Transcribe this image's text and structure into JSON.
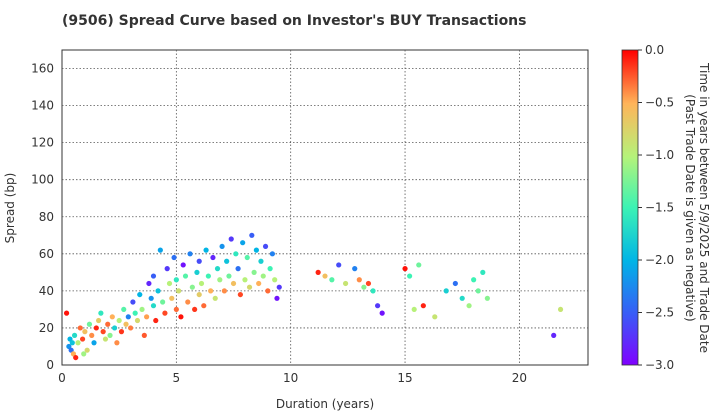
{
  "chart_data": {
    "type": "scatter",
    "title": "(9506)   Spread Curve based on Investor's BUY Transactions",
    "xlabel": "Duration (years)",
    "ylabel": "Spread (bp)",
    "xlim": [
      0,
      23
    ],
    "ylim": [
      0,
      170
    ],
    "xticks": [
      0,
      5,
      10,
      15,
      20
    ],
    "yticks": [
      0,
      20,
      40,
      60,
      80,
      100,
      120,
      140,
      160
    ],
    "grid": true,
    "colorbar": {
      "label_line1": "Time in years between 5/9/2025 and Trade Date",
      "label_line2": "(Past Trade Date is given as negative)",
      "range": [
        -3.0,
        0.0
      ],
      "ticks": [
        "0.0",
        "−0.5",
        "−1.0",
        "−1.5",
        "−2.0",
        "−2.5",
        "−3.0"
      ],
      "colormap": "rainbow"
    },
    "points": [
      [
        0.2,
        28,
        -0.05
      ],
      [
        0.3,
        10,
        -2.2
      ],
      [
        0.35,
        14,
        -2.0
      ],
      [
        0.4,
        8,
        -2.4
      ],
      [
        0.45,
        12,
        -1.9
      ],
      [
        0.5,
        6,
        -0.5
      ],
      [
        0.55,
        16,
        -1.7
      ],
      [
        0.6,
        4,
        -0.1
      ],
      [
        0.7,
        12,
        -1.0
      ],
      [
        0.8,
        20,
        -0.3
      ],
      [
        0.9,
        14,
        -0.2
      ],
      [
        0.95,
        6,
        -1.1
      ],
      [
        1.0,
        18,
        -0.6
      ],
      [
        1.1,
        8,
        -0.8
      ],
      [
        1.2,
        22,
        -1.3
      ],
      [
        1.3,
        16,
        -0.4
      ],
      [
        1.4,
        12,
        -2.1
      ],
      [
        1.5,
        20,
        -0.1
      ],
      [
        1.6,
        24,
        -0.7
      ],
      [
        1.7,
        28,
        -1.6
      ],
      [
        1.8,
        18,
        -0.2
      ],
      [
        1.9,
        14,
        -0.9
      ],
      [
        2.0,
        22,
        -0.3
      ],
      [
        2.1,
        16,
        -1.2
      ],
      [
        2.2,
        26,
        -0.5
      ],
      [
        2.3,
        20,
        -1.8
      ],
      [
        2.4,
        12,
        -0.4
      ],
      [
        2.5,
        24,
        -1.0
      ],
      [
        2.6,
        18,
        -0.15
      ],
      [
        2.7,
        30,
        -1.4
      ],
      [
        2.8,
        22,
        -0.6
      ],
      [
        2.9,
        26,
        -2.3
      ],
      [
        3.0,
        20,
        -0.35
      ],
      [
        3.1,
        34,
        -2.6
      ],
      [
        3.2,
        28,
        -1.5
      ],
      [
        3.3,
        24,
        -0.8
      ],
      [
        3.4,
        38,
        -2.0
      ],
      [
        3.5,
        30,
        -1.1
      ],
      [
        3.6,
        16,
        -0.25
      ],
      [
        3.7,
        26,
        -0.45
      ],
      [
        3.8,
        44,
        -2.8
      ],
      [
        3.9,
        36,
        -2.2
      ],
      [
        4.0,
        32,
        -1.7
      ],
      [
        4.0,
        48,
        -2.5
      ],
      [
        4.1,
        24,
        -0.1
      ],
      [
        4.2,
        40,
        -1.9
      ],
      [
        4.3,
        62,
        -2.1
      ],
      [
        4.4,
        34,
        -1.3
      ],
      [
        4.5,
        28,
        -0.2
      ],
      [
        4.6,
        52,
        -2.7
      ],
      [
        4.7,
        44,
        -1.0
      ],
      [
        4.8,
        36,
        -0.6
      ],
      [
        4.9,
        58,
        -2.4
      ],
      [
        5.0,
        30,
        -0.3
      ],
      [
        5.0,
        46,
        -1.6
      ],
      [
        5.1,
        40,
        -0.85
      ],
      [
        5.2,
        26,
        -0.05
      ],
      [
        5.3,
        54,
        -2.9
      ],
      [
        5.4,
        48,
        -1.4
      ],
      [
        5.5,
        34,
        -0.4
      ],
      [
        5.6,
        60,
        -2.3
      ],
      [
        5.7,
        42,
        -1.2
      ],
      [
        5.8,
        30,
        -0.15
      ],
      [
        5.9,
        50,
        -1.8
      ],
      [
        6.0,
        38,
        -0.7
      ],
      [
        6.0,
        56,
        -2.6
      ],
      [
        6.1,
        44,
        -1.0
      ],
      [
        6.2,
        32,
        -0.3
      ],
      [
        6.3,
        62,
        -2.0
      ],
      [
        6.4,
        48,
        -1.5
      ],
      [
        6.5,
        40,
        -0.5
      ],
      [
        6.6,
        58,
        -2.8
      ],
      [
        6.7,
        36,
        -0.9
      ],
      [
        6.8,
        52,
        -1.7
      ],
      [
        6.9,
        46,
        -1.1
      ],
      [
        7.0,
        64,
        -2.2
      ],
      [
        7.1,
        40,
        -0.4
      ],
      [
        7.2,
        56,
        -1.9
      ],
      [
        7.3,
        48,
        -1.3
      ],
      [
        7.4,
        68,
        -2.7
      ],
      [
        7.5,
        44,
        -0.6
      ],
      [
        7.6,
        60,
        -1.6
      ],
      [
        7.7,
        52,
        -2.4
      ],
      [
        7.8,
        38,
        -0.2
      ],
      [
        7.9,
        66,
        -2.1
      ],
      [
        8.0,
        46,
        -1.0
      ],
      [
        8.1,
        58,
        -1.4
      ],
      [
        8.2,
        42,
        -0.8
      ],
      [
        8.3,
        70,
        -2.5
      ],
      [
        8.4,
        50,
        -1.2
      ],
      [
        8.5,
        62,
        -2.0
      ],
      [
        8.6,
        44,
        -0.5
      ],
      [
        8.7,
        56,
        -1.8
      ],
      [
        8.8,
        48,
        -1.1
      ],
      [
        8.9,
        64,
        -2.6
      ],
      [
        9.0,
        40,
        -0.3
      ],
      [
        9.1,
        52,
        -1.5
      ],
      [
        9.2,
        60,
        -2.3
      ],
      [
        9.3,
        46,
        -1.0
      ],
      [
        9.4,
        36,
        -2.9
      ],
      [
        9.5,
        42,
        -2.7
      ],
      [
        11.2,
        50,
        -0.1
      ],
      [
        11.5,
        48,
        -0.6
      ],
      [
        11.8,
        46,
        -1.4
      ],
      [
        12.1,
        54,
        -2.6
      ],
      [
        12.4,
        44,
        -0.9
      ],
      [
        12.8,
        52,
        -2.3
      ],
      [
        13.0,
        46,
        -0.4
      ],
      [
        13.2,
        42,
        -1.2
      ],
      [
        13.4,
        44,
        -0.2
      ],
      [
        13.6,
        40,
        -1.6
      ],
      [
        13.8,
        32,
        -2.7
      ],
      [
        14.0,
        28,
        -2.9
      ],
      [
        15.0,
        52,
        -0.05
      ],
      [
        15.2,
        48,
        -1.5
      ],
      [
        15.4,
        30,
        -1.0
      ],
      [
        15.6,
        54,
        -1.3
      ],
      [
        15.8,
        32,
        -0.1
      ],
      [
        16.3,
        26,
        -0.9
      ],
      [
        16.8,
        40,
        -1.8
      ],
      [
        17.2,
        44,
        -2.4
      ],
      [
        17.5,
        36,
        -1.7
      ],
      [
        17.8,
        32,
        -1.1
      ],
      [
        18.0,
        46,
        -1.5
      ],
      [
        18.2,
        40,
        -1.3
      ],
      [
        18.4,
        50,
        -1.6
      ],
      [
        18.6,
        36,
        -1.2
      ],
      [
        21.5,
        16,
        -2.8
      ],
      [
        21.8,
        30,
        -0.9
      ]
    ]
  }
}
